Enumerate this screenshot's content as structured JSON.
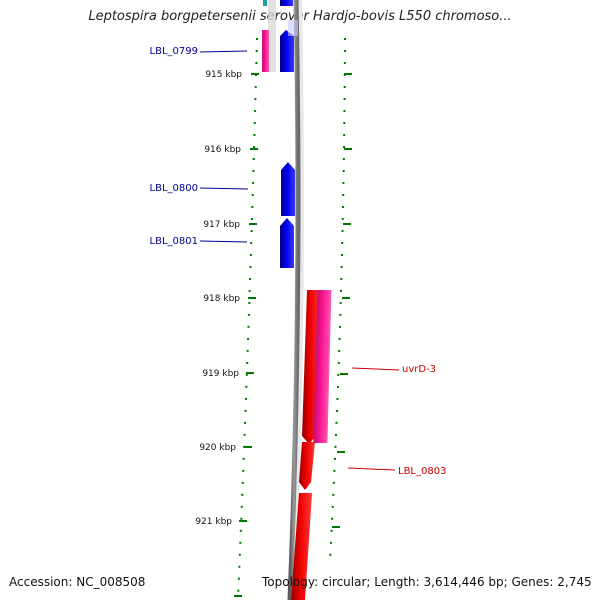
{
  "title": "Leptospira borgpetersenii serovar Hardjo-bovis L550 chromoso...",
  "accession_text": "Accession: NC_008508",
  "summary_text": "Topology: circular; Length: 3,614,446 bp; Genes: 2,745",
  "ticks": [
    "915 kbp",
    "916 kbp",
    "917 kbp",
    "918 kbp",
    "919 kbp",
    "920 kbp",
    "921 kbp"
  ],
  "gene_labels": {
    "lbl_0799": "LBL_0799",
    "lbl_0800": "LBL_0800",
    "lbl_0801": "LBL_0801",
    "uvrd_3": "uvrD-3",
    "lbl_0803": "LBL_0803"
  },
  "colors": {
    "reverse_strand_gene": "#0000ee",
    "forward_strand_gene": "#ee0000",
    "forward_feature": "#ff1493",
    "backbone": "#808080",
    "tick": "#007700",
    "reverse_label": "#000099",
    "forward_label": "#cc0000"
  }
}
